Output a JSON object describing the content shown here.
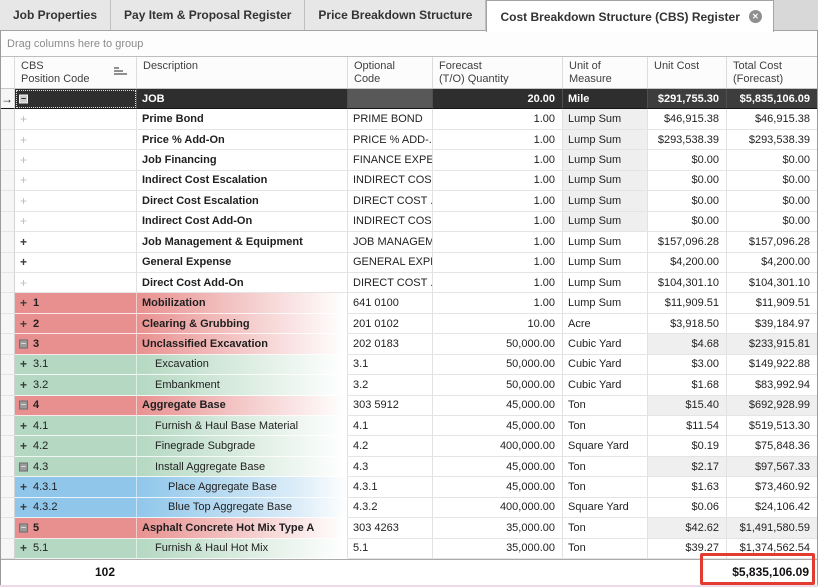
{
  "tabs": [
    {
      "label": "Job Properties",
      "active": false,
      "closable": false
    },
    {
      "label": "Pay Item & Proposal Register",
      "active": false,
      "closable": false
    },
    {
      "label": "Price Breakdown Structure",
      "active": false,
      "closable": false
    },
    {
      "label": "Cost Breakdown Structure (CBS) Register",
      "active": true,
      "closable": true
    }
  ],
  "group_bar": {
    "hint": "Drag columns here to group"
  },
  "columns": [
    {
      "id": "gutter",
      "line1": "",
      "line2": "",
      "sort": false
    },
    {
      "id": "cbs",
      "line1": "CBS",
      "line2": "Position Code",
      "sort": true
    },
    {
      "id": "desc",
      "line1": "Description",
      "line2": "",
      "sort": false
    },
    {
      "id": "opt",
      "line1": "Optional",
      "line2": "Code",
      "sort": false
    },
    {
      "id": "qty",
      "line1": "Forecast",
      "line2": "(T/O) Quantity",
      "sort": false
    },
    {
      "id": "uom",
      "line1": "Unit of",
      "line2": "Measure",
      "sort": false
    },
    {
      "id": "uc",
      "line1": "Unit Cost",
      "line2": "",
      "sort": false
    },
    {
      "id": "tc",
      "line1": "Total Cost",
      "line2": "(Forecast)",
      "sort": false
    }
  ],
  "rows": [
    {
      "code": "",
      "desc": "JOB",
      "opt": "",
      "qty": "20.00",
      "uom": "Mile",
      "unit_cost": "$291,755.30",
      "total_cost": "$5,835,106.09",
      "color": "dark",
      "icon": "minus",
      "bold": true,
      "level": 1,
      "money_gray": false,
      "uom_gray": false,
      "current": true,
      "focus": true
    },
    {
      "code": "",
      "desc": "Prime Bond",
      "opt": "PRIME BOND",
      "qty": "1.00",
      "uom": "Lump Sum",
      "unit_cost": "$46,915.38",
      "total_cost": "$46,915.38",
      "color": "white",
      "icon": "plus-light",
      "bold": true,
      "level": 1,
      "money_gray": false,
      "uom_gray": true,
      "current": false,
      "focus": false
    },
    {
      "code": "",
      "desc": "Price % Add-On",
      "opt": "PRICE % ADD-...",
      "qty": "1.00",
      "uom": "Lump Sum",
      "unit_cost": "$293,538.39",
      "total_cost": "$293,538.39",
      "color": "white",
      "icon": "plus-light",
      "bold": true,
      "level": 1,
      "money_gray": false,
      "uom_gray": true,
      "current": false,
      "focus": false
    },
    {
      "code": "",
      "desc": "Job Financing",
      "opt": "FINANCE EXPE...",
      "qty": "1.00",
      "uom": "Lump Sum",
      "unit_cost": "$0.00",
      "total_cost": "$0.00",
      "color": "white",
      "icon": "plus-light",
      "bold": true,
      "level": 1,
      "money_gray": false,
      "uom_gray": true,
      "current": false,
      "focus": false
    },
    {
      "code": "",
      "desc": "Indirect Cost Escalation",
      "opt": "INDIRECT COS...",
      "qty": "1.00",
      "uom": "Lump Sum",
      "unit_cost": "$0.00",
      "total_cost": "$0.00",
      "color": "white",
      "icon": "plus-light",
      "bold": true,
      "level": 1,
      "money_gray": false,
      "uom_gray": true,
      "current": false,
      "focus": false
    },
    {
      "code": "",
      "desc": "Direct Cost Escalation",
      "opt": "DIRECT COST ...",
      "qty": "1.00",
      "uom": "Lump Sum",
      "unit_cost": "$0.00",
      "total_cost": "$0.00",
      "color": "white",
      "icon": "plus-light",
      "bold": true,
      "level": 1,
      "money_gray": false,
      "uom_gray": true,
      "current": false,
      "focus": false
    },
    {
      "code": "",
      "desc": "Indirect Cost Add-On",
      "opt": "INDIRECT COS...",
      "qty": "1.00",
      "uom": "Lump Sum",
      "unit_cost": "$0.00",
      "total_cost": "$0.00",
      "color": "white",
      "icon": "plus-light",
      "bold": true,
      "level": 1,
      "money_gray": false,
      "uom_gray": true,
      "current": false,
      "focus": false
    },
    {
      "code": "",
      "desc": "Job Management & Equipment",
      "opt": "JOB MANAGEM...",
      "qty": "1.00",
      "uom": "Lump Sum",
      "unit_cost": "$157,096.28",
      "total_cost": "$157,096.28",
      "color": "white",
      "icon": "plus",
      "bold": true,
      "level": 1,
      "money_gray": false,
      "uom_gray": false,
      "current": false,
      "focus": false
    },
    {
      "code": "",
      "desc": "General Expense",
      "opt": "GENERAL EXPE...",
      "qty": "1.00",
      "uom": "Lump Sum",
      "unit_cost": "$4,200.00",
      "total_cost": "$4,200.00",
      "color": "white",
      "icon": "plus",
      "bold": true,
      "level": 1,
      "money_gray": false,
      "uom_gray": false,
      "current": false,
      "focus": false
    },
    {
      "code": "",
      "desc": "Direct Cost Add-On",
      "opt": "DIRECT COST ...",
      "qty": "1.00",
      "uom": "Lump Sum",
      "unit_cost": "$104,301.10",
      "total_cost": "$104,301.10",
      "color": "white",
      "icon": "plus-light",
      "bold": true,
      "level": 1,
      "money_gray": false,
      "uom_gray": false,
      "current": false,
      "focus": false
    },
    {
      "code": "1",
      "desc": "Mobilization",
      "opt": "641 0100",
      "qty": "1.00",
      "uom": "Lump Sum",
      "unit_cost": "$11,909.51",
      "total_cost": "$11,909.51",
      "color": "red",
      "icon": "plus",
      "bold": true,
      "level": 1,
      "money_gray": false,
      "uom_gray": false,
      "current": false,
      "focus": false
    },
    {
      "code": "2",
      "desc": "Clearing & Grubbing",
      "opt": "201 0102",
      "qty": "10.00",
      "uom": "Acre",
      "unit_cost": "$3,918.50",
      "total_cost": "$39,184.97",
      "color": "red",
      "icon": "plus",
      "bold": true,
      "level": 1,
      "money_gray": false,
      "uom_gray": false,
      "current": false,
      "focus": false
    },
    {
      "code": "3",
      "desc": "Unclassified Excavation",
      "opt": "202 0183",
      "qty": "50,000.00",
      "uom": "Cubic Yard",
      "unit_cost": "$4.68",
      "total_cost": "$233,915.81",
      "color": "red",
      "icon": "minus",
      "bold": true,
      "level": 1,
      "money_gray": true,
      "uom_gray": false,
      "current": false,
      "focus": false
    },
    {
      "code": "3.1",
      "desc": "Excavation",
      "opt": "3.1",
      "qty": "50,000.00",
      "uom": "Cubic Yard",
      "unit_cost": "$3.00",
      "total_cost": "$149,922.88",
      "color": "green",
      "icon": "plus",
      "bold": false,
      "level": 2,
      "money_gray": false,
      "uom_gray": false,
      "current": false,
      "focus": false
    },
    {
      "code": "3.2",
      "desc": "Embankment",
      "opt": "3.2",
      "qty": "50,000.00",
      "uom": "Cubic Yard",
      "unit_cost": "$1.68",
      "total_cost": "$83,992.94",
      "color": "green",
      "icon": "plus",
      "bold": false,
      "level": 2,
      "money_gray": false,
      "uom_gray": false,
      "current": false,
      "focus": false
    },
    {
      "code": "4",
      "desc": "Aggregate Base",
      "opt": "303 5912",
      "qty": "45,000.00",
      "uom": "Ton",
      "unit_cost": "$15.40",
      "total_cost": "$692,928.99",
      "color": "red",
      "icon": "minus",
      "bold": true,
      "level": 1,
      "money_gray": true,
      "uom_gray": false,
      "current": false,
      "focus": false
    },
    {
      "code": "4.1",
      "desc": "Furnish & Haul Base Material",
      "opt": "4.1",
      "qty": "45,000.00",
      "uom": "Ton",
      "unit_cost": "$11.54",
      "total_cost": "$519,513.30",
      "color": "green",
      "icon": "plus",
      "bold": false,
      "level": 2,
      "money_gray": false,
      "uom_gray": false,
      "current": false,
      "focus": false
    },
    {
      "code": "4.2",
      "desc": "Finegrade Subgrade",
      "opt": "4.2",
      "qty": "400,000.00",
      "uom": "Square Yard",
      "unit_cost": "$0.19",
      "total_cost": "$75,848.36",
      "color": "green",
      "icon": "plus",
      "bold": false,
      "level": 2,
      "money_gray": false,
      "uom_gray": false,
      "current": false,
      "focus": false
    },
    {
      "code": "4.3",
      "desc": "Install Aggregate Base",
      "opt": "4.3",
      "qty": "45,000.00",
      "uom": "Ton",
      "unit_cost": "$2.17",
      "total_cost": "$97,567.33",
      "color": "green",
      "icon": "minus",
      "bold": false,
      "level": 2,
      "money_gray": true,
      "uom_gray": false,
      "current": false,
      "focus": false
    },
    {
      "code": "4.3.1",
      "desc": "Place Aggregate Base",
      "opt": "4.3.1",
      "qty": "45,000.00",
      "uom": "Ton",
      "unit_cost": "$1.63",
      "total_cost": "$73,460.92",
      "color": "blue",
      "icon": "plus",
      "bold": false,
      "level": 3,
      "money_gray": false,
      "uom_gray": false,
      "current": false,
      "focus": false
    },
    {
      "code": "4.3.2",
      "desc": "Blue Top Aggregate Base",
      "opt": "4.3.2",
      "qty": "400,000.00",
      "uom": "Square Yard",
      "unit_cost": "$0.06",
      "total_cost": "$24,106.42",
      "color": "blue",
      "icon": "plus",
      "bold": false,
      "level": 3,
      "money_gray": false,
      "uom_gray": false,
      "current": false,
      "focus": false
    },
    {
      "code": "5",
      "desc": "Asphalt Concrete Hot Mix Type A",
      "opt": "303 4263",
      "qty": "35,000.00",
      "uom": "Ton",
      "unit_cost": "$42.62",
      "total_cost": "$1,491,580.59",
      "color": "red",
      "icon": "minus",
      "bold": true,
      "level": 1,
      "money_gray": true,
      "uom_gray": false,
      "current": false,
      "focus": false
    },
    {
      "code": "5.1",
      "desc": "Furnish & Haul Hot Mix",
      "opt": "5.1",
      "qty": "35,000.00",
      "uom": "Ton",
      "unit_cost": "$39.27",
      "total_cost": "$1,374,562.54",
      "color": "green",
      "icon": "plus",
      "bold": false,
      "level": 2,
      "money_gray": false,
      "uom_gray": false,
      "current": false,
      "focus": false
    }
  ],
  "footer": {
    "count": "102",
    "total": "$5,835,106.09"
  },
  "icons": {
    "close": "✕",
    "collapse": "−",
    "expand": "+",
    "current_row_arrow": "→"
  },
  "colors": {
    "row_red": "#e8908f",
    "row_green": "#b4d8c1",
    "row_blue": "#8fc6ea",
    "summary_row": "#2e2e2e",
    "annotation_red": "#e33b2f"
  }
}
